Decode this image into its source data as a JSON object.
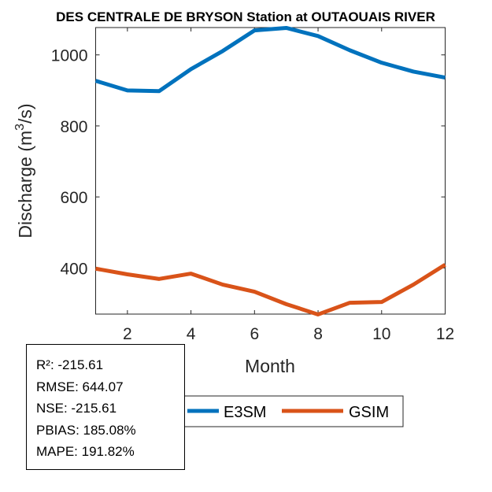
{
  "chart_data": {
    "type": "line",
    "title": "DES CENTRALE DE BRYSON  Station at  OUTAOUAIS RIVER",
    "xlabel": "Month",
    "ylabel": "Discharge (m^3/s)",
    "ylabel_main": "Discharge (m",
    "ylabel_sup": "3",
    "ylabel_end": "/s)",
    "xlim": [
      1,
      12
    ],
    "ylim": [
      270,
      1077
    ],
    "xticks": [
      2,
      4,
      6,
      8,
      10,
      12
    ],
    "yticks": [
      400,
      600,
      800,
      1000
    ],
    "grid": false,
    "legend_position": "bottom-center",
    "x": [
      1,
      2,
      3,
      4,
      5,
      6,
      7,
      8,
      9,
      10,
      11,
      12
    ],
    "series": [
      {
        "name": "E3SM",
        "color": "#0072BD",
        "values": [
          927,
          900,
          898,
          960,
          1011,
          1069,
          1076,
          1053,
          1013,
          978,
          953,
          936
        ]
      },
      {
        "name": "GSIM",
        "color": "#D95319",
        "values": [
          398,
          382,
          369,
          384,
          353,
          333,
          298,
          269,
          302,
          304,
          353,
          409
        ]
      }
    ],
    "stats": [
      "R²: -215.61",
      "RMSE: 644.07",
      "NSE: -215.61",
      "PBIAS: 185.08%",
      "MAPE: 191.82%"
    ]
  }
}
